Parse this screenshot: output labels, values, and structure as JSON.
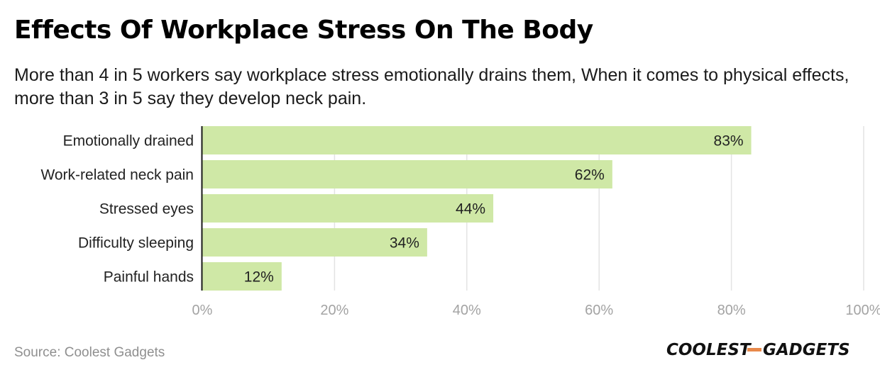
{
  "chart_data": {
    "type": "bar",
    "orientation": "horizontal",
    "title": "Effects Of Workplace Stress On The Body",
    "subtitle": "More than 4 in 5 workers say workplace stress emotionally drains them, When it comes to physical effects, more than 3 in 5 say they develop neck pain.",
    "categories": [
      "Emotionally drained",
      "Work-related neck pain",
      "Stressed eyes",
      "Difficulty sleeping",
      "Painful hands"
    ],
    "values": [
      83,
      62,
      44,
      34,
      12
    ],
    "value_labels": [
      "83%",
      "62%",
      "44%",
      "34%",
      "12%"
    ],
    "xlim": [
      0,
      100
    ],
    "x_ticks": [
      0,
      20,
      40,
      60,
      80,
      100
    ],
    "x_tick_labels": [
      "0%",
      "20%",
      "40%",
      "60%",
      "80%",
      "100%"
    ],
    "grid": "vertical",
    "legend": "none",
    "bar_color": "#cfe8a6"
  },
  "source": "Source: Coolest Gadgets",
  "logo": {
    "left": "COOLEST",
    "right": "GADGETS",
    "accent": "#e8894a"
  }
}
